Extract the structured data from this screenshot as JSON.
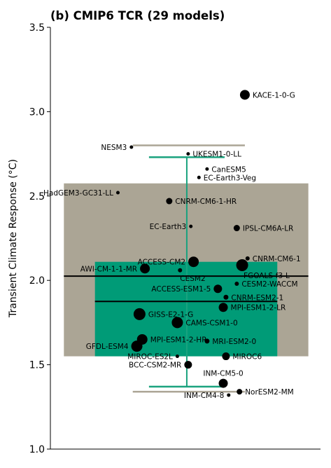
{
  "chart_data": {
    "type": "scatter",
    "title": "(b) CMIP6 TCR (29 models)",
    "xlabel": "",
    "ylabel": "Transient Climate Response (°C)",
    "ylim": [
      1.0,
      3.5
    ],
    "yticks": [
      "1.0",
      "1.5",
      "2.0",
      "2.5",
      "3.0",
      "3.5"
    ],
    "grid": false,
    "colors": {
      "outer_box": "#aba595",
      "inner_box": "#009b77",
      "outer_whisker": "#aba595",
      "inner_whisker": "#19a27e",
      "median": "#000000",
      "marker": "#000000"
    },
    "summary": {
      "outer": {
        "box_low": 1.55,
        "box_high": 2.575,
        "whisker_low": 1.34,
        "whisker_high": 2.8,
        "median": 2.025
      },
      "inner": {
        "box_low": 1.55,
        "box_high": 2.11,
        "whisker_low": 1.37,
        "whisker_high": 2.73,
        "median": 1.875
      }
    },
    "models": [
      {
        "name": "KACE-1-0-G",
        "x": 0.72,
        "y": 3.1,
        "size": 7,
        "label_side": "right"
      },
      {
        "name": "NESM3",
        "x": 0.3,
        "y": 2.79,
        "size": 2.5,
        "label_side": "left"
      },
      {
        "name": "UKESM1-0-LL",
        "x": 0.51,
        "y": 2.75,
        "size": 2.5,
        "label_side": "right"
      },
      {
        "name": "CanESM5",
        "x": 0.58,
        "y": 2.66,
        "size": 2.5,
        "label_side": "right"
      },
      {
        "name": "EC-Earth3-Veg",
        "x": 0.55,
        "y": 2.61,
        "size": 2.5,
        "label_side": "right"
      },
      {
        "name": "HadGEM3-GC31-LL",
        "x": 0.25,
        "y": 2.52,
        "size": 2.5,
        "label_side": "left"
      },
      {
        "name": "CNRM-CM6-1-HR",
        "x": 0.44,
        "y": 2.47,
        "size": 4.5,
        "label_side": "right"
      },
      {
        "name": "EC-Earth3",
        "x": 0.52,
        "y": 2.32,
        "size": 2.5,
        "label_side": "left"
      },
      {
        "name": "IPSL-CM6A-LR",
        "x": 0.69,
        "y": 2.31,
        "size": 4.5,
        "label_side": "right"
      },
      {
        "name": "ACCESS-CM2",
        "x": 0.53,
        "y": 2.11,
        "size": 7.5,
        "label_side": "left"
      },
      {
        "name": "CNRM-CM6-1",
        "x": 0.73,
        "y": 2.13,
        "size": 3,
        "label_side": "right"
      },
      {
        "name": "AWI-CM-1-1-MR",
        "x": 0.35,
        "y": 2.07,
        "size": 7,
        "label_side": "left"
      },
      {
        "name": "CESM2",
        "x": 0.48,
        "y": 2.06,
        "size": 3,
        "label_side": "below"
      },
      {
        "name": "FGOALS-f3-L",
        "x": 0.71,
        "y": 2.09,
        "size": 8.5,
        "label_side": "below-right"
      },
      {
        "name": "CESM2-WACCM",
        "x": 0.69,
        "y": 1.98,
        "size": 3,
        "label_side": "right"
      },
      {
        "name": "ACCESS-ESM1-5",
        "x": 0.62,
        "y": 1.95,
        "size": 6,
        "label_side": "left"
      },
      {
        "name": "CNRM-ESM2-1",
        "x": 0.65,
        "y": 1.9,
        "size": 3.5,
        "label_side": "right"
      },
      {
        "name": "MPI-ESM1-2-LR",
        "x": 0.64,
        "y": 1.84,
        "size": 6.5,
        "label_side": "right"
      },
      {
        "name": "GISS-E2-1-G",
        "x": 0.33,
        "y": 1.8,
        "size": 8.5,
        "label_side": "right"
      },
      {
        "name": "CAMS-CSM1-0",
        "x": 0.47,
        "y": 1.75,
        "size": 8,
        "label_side": "right"
      },
      {
        "name": "MRI-ESM2-0",
        "x": 0.58,
        "y": 1.64,
        "size": 3.5,
        "label_side": "right"
      },
      {
        "name": "MPI-ESM1-2-HR",
        "x": 0.34,
        "y": 1.65,
        "size": 7.5,
        "label_side": "right"
      },
      {
        "name": "GFDL-ESM4",
        "x": 0.32,
        "y": 1.61,
        "size": 8,
        "label_side": "left"
      },
      {
        "name": "MIROC6",
        "x": 0.65,
        "y": 1.55,
        "size": 5.5,
        "label_side": "right"
      },
      {
        "name": "MIROC-ES2L",
        "x": 0.47,
        "y": 1.55,
        "size": 2.5,
        "label_side": "left"
      },
      {
        "name": "BCC-CSM2-MR",
        "x": 0.51,
        "y": 1.5,
        "size": 5.5,
        "label_side": "left"
      },
      {
        "name": "INM-CM5-0",
        "x": 0.64,
        "y": 1.39,
        "size": 6.5,
        "label_side": "above"
      },
      {
        "name": "NorESM2-MM",
        "x": 0.7,
        "y": 1.34,
        "size": 4,
        "label_side": "right"
      },
      {
        "name": "INM-CM4-8",
        "x": 0.66,
        "y": 1.32,
        "size": 2.5,
        "label_side": "left"
      }
    ]
  }
}
